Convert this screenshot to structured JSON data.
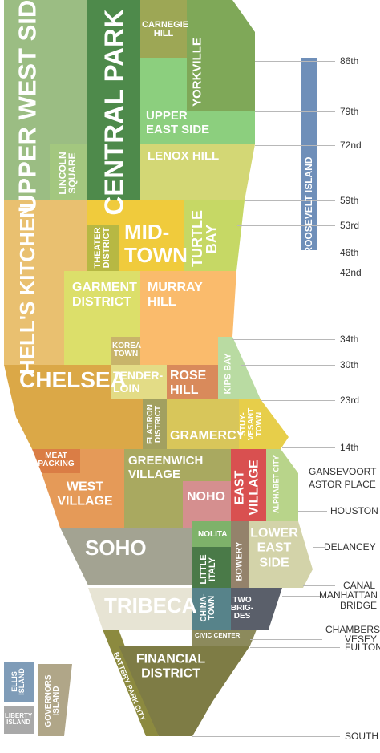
{
  "neighborhoods": {
    "upper_west_side": "UPPER WEST SIDE",
    "central_park": "CENTRAL PARK",
    "carnegie_hill": "CARNEGIE HILL",
    "yorkville": "YORKVILLE",
    "upper_east_side": "UPPER EAST SIDE",
    "lenox_hill": "LENOX HILL",
    "lincoln_square": "LINCOLN SQUARE",
    "roosevelt_island": "ROOSEVELT ISLAND",
    "hells_kitchen": "HELL'S KITCHEN",
    "theater_district": "THEATER DISTRICT",
    "midtown": "MID-TOWN",
    "turtle_bay": "TURTLE BAY",
    "garment_district": "GARMENT DISTRICT",
    "murray_hill": "MURRAY HILL",
    "korea_town": "KOREA TOWN",
    "kips_bay": "KIPS BAY",
    "chelsea": "CHELSEA",
    "tenderloin": "TENDER-LOIN",
    "rose_hill": "ROSE HILL",
    "flatiron_district": "FLATIRON DISTRICT",
    "gramercy": "GRAMERCY",
    "stuyvesant_town": "STUY-VESANT TOWN",
    "meat_packing": "MEAT PACKING",
    "west_village": "WEST VILLAGE",
    "greenwich_village": "GREENWICH VILLAGE",
    "noho": "NOHO",
    "east_village": "EAST VILLAGE",
    "alphabet_city": "ALPHABET CITY",
    "soho": "SOHO",
    "nolita": "NOLITA",
    "little_italy": "LITTLE ITALY",
    "bowery": "BOWERY",
    "lower_east_side": "LOWER EAST SIDE",
    "tribeca": "TRIBECA",
    "chinatown": "CHINA-TOWN",
    "two_bridges": "TWO BRIG-DES",
    "civic_center": "CIVIC CENTER",
    "financial_district": "FINANCIAL DISTRICT",
    "battery_park_city": "BATTERY PARK CITY",
    "ellis_island": "ELLIS ISLAND",
    "liberty_island": "LIBERTY ISLAND",
    "governors_island": "GOVERNORS ISLAND"
  },
  "streets": [
    "86th",
    "79th",
    "72nd",
    "59th",
    "53rd",
    "46th",
    "42nd",
    "34th",
    "30th",
    "23rd",
    "14th",
    "GANSEVOORT",
    "ASTOR PLACE",
    "HOUSTON",
    "DELANCEY",
    "CANAL",
    "MANHATTAN BRIDGE",
    "CHAMBERS",
    "VESEY",
    "FULTON",
    "SOUTH"
  ],
  "colors": {
    "upper_west_side": "#9bbd83",
    "central_park": "#4e8a4b",
    "upper_east_side": "#8ccf7e",
    "lenox_hill": "#d3d775",
    "hells_kitchen": "#e9c070",
    "midtown": "#f0cb3c",
    "murray_hill": "#fabb6c",
    "chelsea": "#dba847",
    "soho": "#a3a392",
    "tribeca": "#e7e4d4",
    "financial_district": "#7e7c45",
    "roosevelt_island": "#6f8fb9"
  }
}
